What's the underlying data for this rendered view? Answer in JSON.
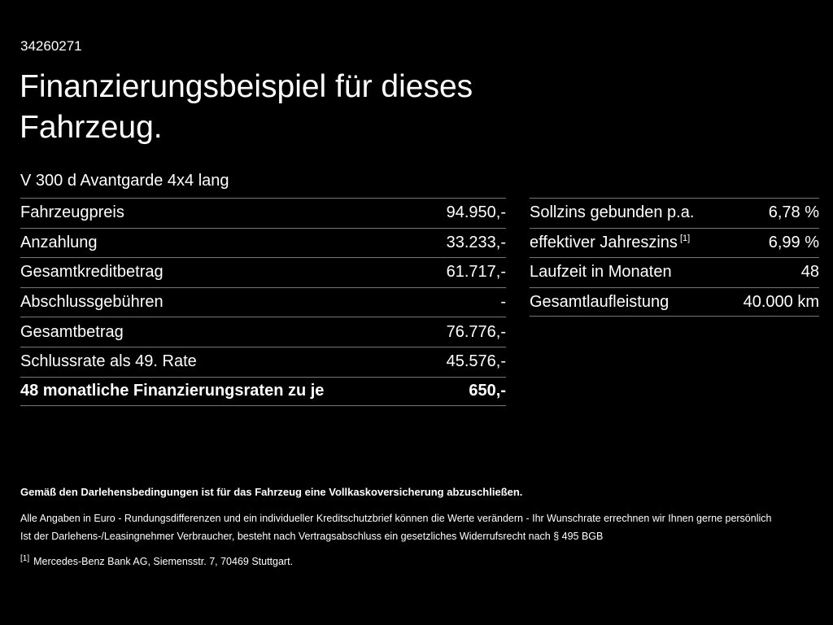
{
  "page": {
    "id": "34260271",
    "title_line1": "Finanzierungsbeispiel für dieses",
    "title_line2": "Fahrzeug.",
    "subtitle": "V 300 d Avantgarde 4x4 lang"
  },
  "left_table": {
    "rows": [
      {
        "label": "Fahrzeugpreis",
        "value": "94.950,-"
      },
      {
        "label": "Anzahlung",
        "value": "33.233,-"
      },
      {
        "label": "Gesamtkreditbetrag",
        "value": "61.717,-"
      },
      {
        "label": "Abschlussgebühren",
        "value": "-"
      },
      {
        "label": "Gesamtbetrag",
        "value": "76.776,-"
      },
      {
        "label": "Schlussrate als 49. Rate",
        "value": "45.576,-"
      },
      {
        "label": "48 monatliche Finanzierungsraten zu je",
        "value": "650,-"
      }
    ]
  },
  "right_table": {
    "rows": [
      {
        "label": "Sollzins gebunden p.a.",
        "value": "6,78 %"
      },
      {
        "label": "effektiver Jahreszins",
        "sup": "[1]",
        "value": "6,99 %"
      },
      {
        "label": "Laufzeit in Monaten",
        "value": "48"
      },
      {
        "label": "Gesamtlaufleistung",
        "value": "40.000 km"
      }
    ]
  },
  "footer": {
    "line_bold": "Gemäß den Darlehensbedingungen ist für das Fahrzeug eine Vollkaskoversicherung abzuschließen.",
    "line2": "Alle Angaben in Euro - Rundungsdifferenzen und ein individueller Kreditschutzbrief können die Werte verändern - Ihr Wunschrate errechnen wir Ihnen gerne persönlich",
    "line3": "Ist der Darlehens-/Leasingnehmer Verbraucher, besteht nach Vertragsabschluss ein gesetzliches Widerrufsrecht nach § 495 BGB",
    "footnote_marker": "[1]",
    "footnote_text": "Mercedes-Benz Bank AG, Siemensstr. 7, 70469 Stuttgart."
  }
}
